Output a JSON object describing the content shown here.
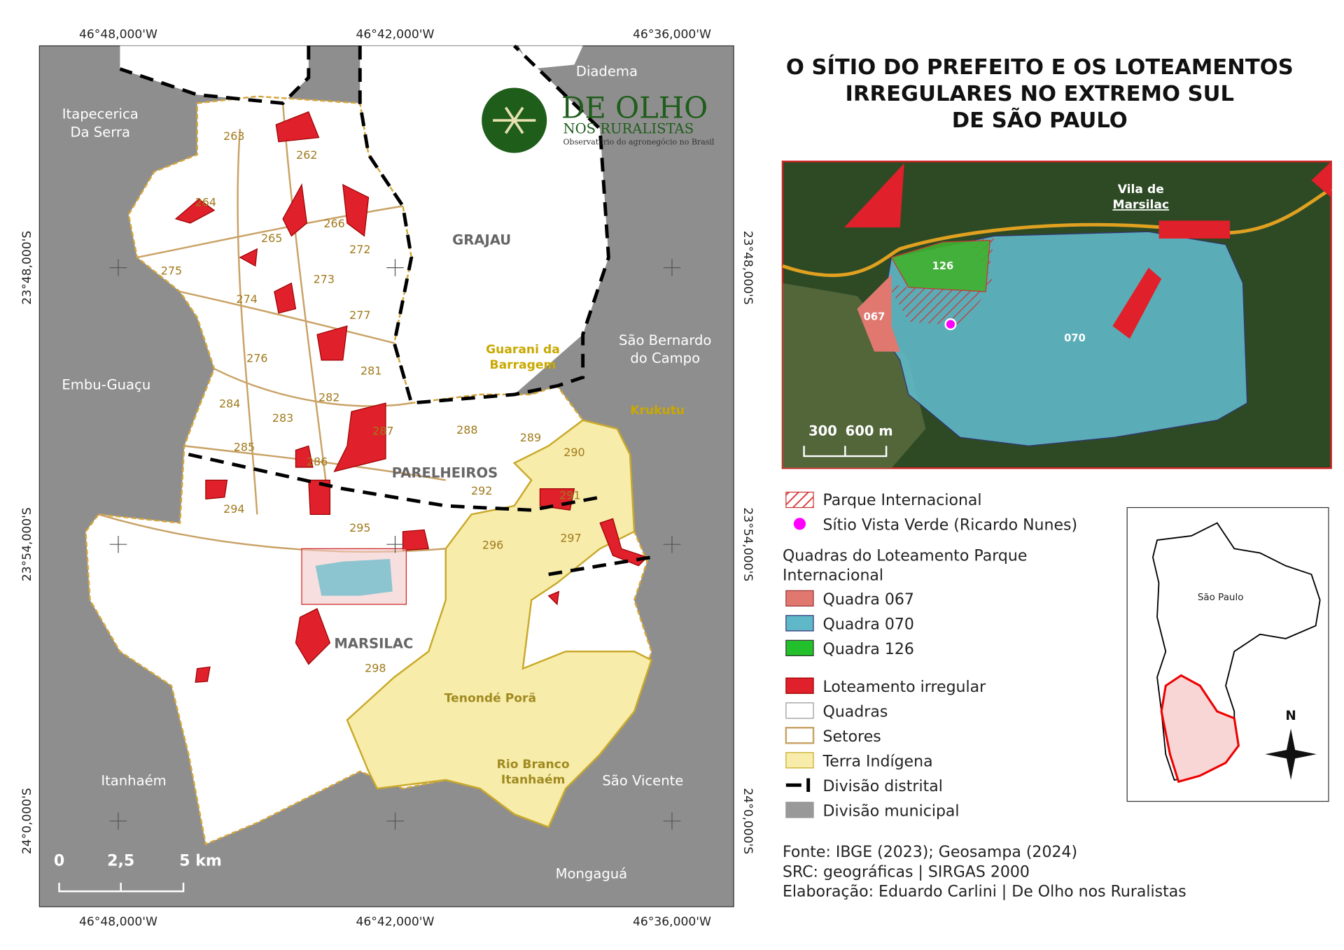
{
  "title_lines": [
    "O SÍTIO DO PREFEITO E OS LOTEAMENTOS",
    "IRREGULARES NO EXTREMO SUL",
    "DE SÃO PAULO"
  ],
  "longitudes": [
    "46°48,000'W",
    "46°42,000'W",
    "46°36,000'W"
  ],
  "latitudes": [
    "23°48,000'S",
    "23°54,000'S",
    "24°0,000'S"
  ],
  "logo": {
    "name": "DE OLHO",
    "subname": "NOS RURALISTAS",
    "tagline": "Observatório do agronegócio no Brasil"
  },
  "places": [
    "Diadema",
    "Itapecerica",
    "Da Serra",
    "GRAJAU",
    "São Bernardo",
    "do Campo",
    "Embu-Guaçu",
    "Guarani da",
    "Barragem",
    "Krukutu",
    "PARELHEIROS",
    "MARSILAC",
    "Tenondé Porã",
    "Rio Branco",
    "Itanhaém",
    "Itanhaém",
    "São Vicente",
    "Mongaguá"
  ],
  "sectors": [
    "263",
    "262",
    "264",
    "266",
    "265",
    "272",
    "275",
    "273",
    "274",
    "277",
    "276",
    "281",
    "282",
    "283",
    "284",
    "287",
    "285",
    "286",
    "288",
    "289",
    "290",
    "292",
    "291",
    "294",
    "295",
    "296",
    "297",
    "298"
  ],
  "scale_bar": [
    "0",
    "2,5",
    "5 km"
  ],
  "inset": {
    "village": [
      "Vila de",
      "Marsilac"
    ],
    "lots": [
      "126",
      "067",
      "070"
    ],
    "scale": [
      "300",
      "600 m"
    ]
  },
  "legend": {
    "top_items": [
      "Parque Internacional",
      "Sítio Vista Verde (Ricardo Nunes)"
    ],
    "heading": [
      "Quadras do Loteamento Parque",
      "Internacional"
    ],
    "items": [
      "Quadra 067",
      "Quadra 070",
      "Quadra 126",
      "Loteamento irregular",
      "Quadras",
      "Setores",
      "Terra Indígena",
      "Divisão distrital",
      "Divisão municipal"
    ]
  },
  "locator": {
    "label": "São Paulo",
    "north": "N"
  },
  "credits": [
    "Fonte: IBGE (2023); Geosampa (2024)",
    "SRC: geográficas | SIRGAS 2000",
    "Elaboração: Eduardo Carlini | De Olho nos Ruralistas"
  ]
}
